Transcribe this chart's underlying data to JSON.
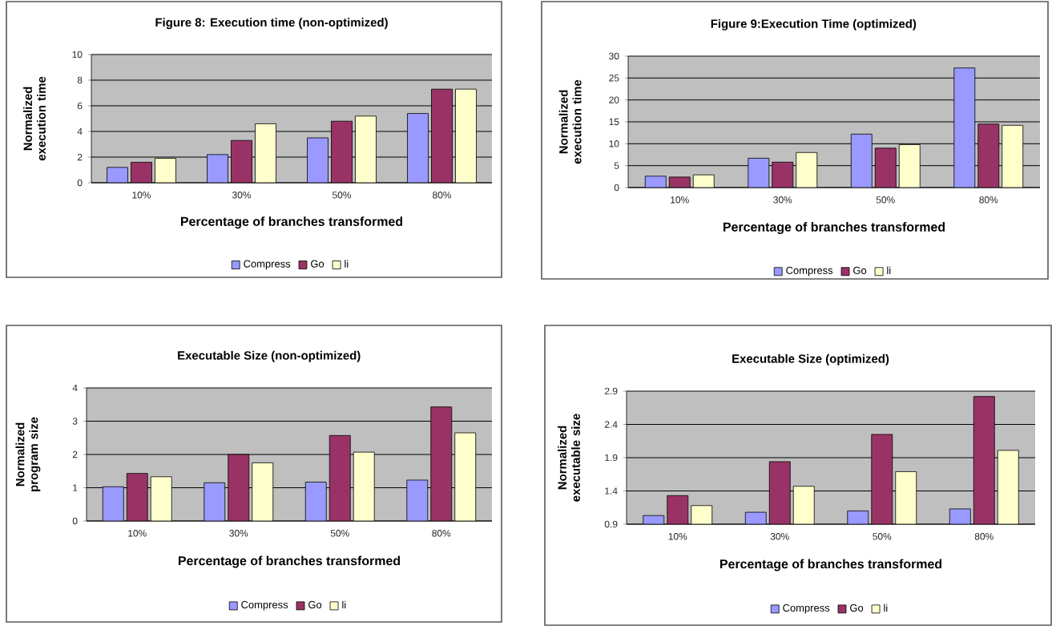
{
  "chart_data": [
    {
      "type": "bar",
      "title": "Figure 8: Execution time (non-optimized)",
      "xlabel": "Percentage of branches transformed",
      "ylabel": "Normalized execution time",
      "categories": [
        "10%",
        "30%",
        "50%",
        "80%"
      ],
      "ylim": [
        0,
        10
      ],
      "yticks": [
        0,
        2,
        4,
        6,
        8,
        10
      ],
      "grid": "y",
      "legend": "bottom",
      "series": [
        {
          "name": "Compress",
          "color": "#9999ff",
          "values": [
            1.2,
            2.2,
            3.5,
            5.4
          ]
        },
        {
          "name": "Go",
          "color": "#993366",
          "values": [
            1.6,
            3.3,
            4.8,
            7.3
          ]
        },
        {
          "name": "li",
          "color": "#ffffcc",
          "values": [
            1.9,
            4.6,
            5.2,
            7.3
          ]
        }
      ]
    },
    {
      "type": "bar",
      "title": "Figure 9:Execution Time (optimized)",
      "xlabel": "Percentage of branches transformed",
      "ylabel": "Normalized execution time",
      "categories": [
        "10%",
        "30%",
        "50%",
        "80%"
      ],
      "ylim": [
        0,
        30
      ],
      "yticks": [
        0,
        5,
        10,
        15,
        20,
        25,
        30
      ],
      "grid": "y",
      "legend": "bottom",
      "series": [
        {
          "name": "Compress",
          "color": "#9999ff",
          "values": [
            2.6,
            6.7,
            12.2,
            27.3
          ]
        },
        {
          "name": "Go",
          "color": "#993366",
          "values": [
            2.4,
            5.8,
            9.0,
            14.5
          ]
        },
        {
          "name": "li",
          "color": "#ffffcc",
          "values": [
            2.9,
            8.0,
            9.8,
            14.2
          ]
        }
      ]
    },
    {
      "type": "bar",
      "title": "Executable Size (non-optimized)",
      "xlabel": "Percentage of branches transformed",
      "ylabel": "Normalized program size",
      "categories": [
        "10%",
        "30%",
        "50%",
        "80%"
      ],
      "ylim": [
        0,
        4
      ],
      "yticks": [
        0,
        1,
        2,
        3,
        4
      ],
      "grid": "y",
      "legend": "bottom",
      "series": [
        {
          "name": "Compress",
          "color": "#9999ff",
          "values": [
            1.03,
            1.15,
            1.17,
            1.23
          ]
        },
        {
          "name": "Go",
          "color": "#993366",
          "values": [
            1.43,
            2.0,
            2.57,
            3.43
          ]
        },
        {
          "name": "li",
          "color": "#ffffcc",
          "values": [
            1.33,
            1.75,
            2.07,
            2.65
          ]
        }
      ]
    },
    {
      "type": "bar",
      "title": "Executable Size (optimized)",
      "xlabel": "Percentage of branches transformed",
      "ylabel": "Normalized executable size",
      "categories": [
        "10%",
        "30%",
        "50%",
        "80%"
      ],
      "ylim": [
        0.9,
        2.9
      ],
      "yticks": [
        0.9,
        1.4,
        1.9,
        2.4,
        2.9
      ],
      "grid": "y",
      "legend": "bottom",
      "series": [
        {
          "name": "Compress",
          "color": "#9999ff",
          "values": [
            1.03,
            1.08,
            1.1,
            1.13
          ]
        },
        {
          "name": "Go",
          "color": "#993366",
          "values": [
            1.33,
            1.84,
            2.25,
            2.82
          ]
        },
        {
          "name": "li",
          "color": "#ffffcc",
          "values": [
            1.18,
            1.47,
            1.69,
            2.01
          ]
        }
      ]
    }
  ]
}
